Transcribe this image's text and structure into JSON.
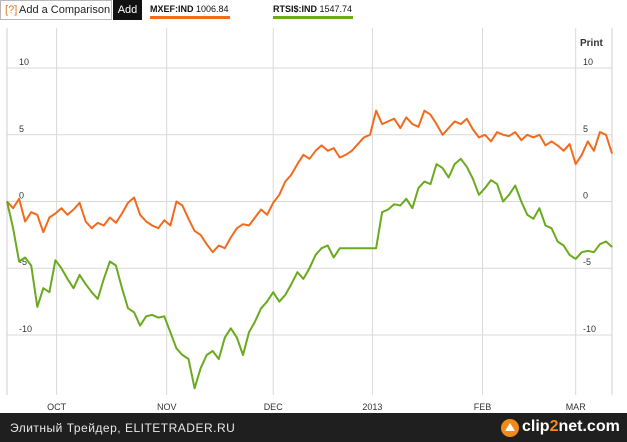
{
  "toolbar": {
    "help_glyph": "?",
    "compare_label": "Add a Comparison",
    "add_label": "Add",
    "print_label": "Print"
  },
  "legend": [
    {
      "ticker": "MXEF:IND",
      "value": "1006.84",
      "color": "#f26b1d"
    },
    {
      "ticker": "RTSI$:IND",
      "value": "1547.74",
      "color": "#6aaa1e"
    }
  ],
  "footer": {
    "caption": "Элитный Трейдер, ELITETRADER.RU",
    "logo_text_a": "clip",
    "logo_text_b": "2",
    "logo_text_c": "net.com"
  },
  "chart_data": {
    "type": "line",
    "ylim": [
      -14.5,
      13
    ],
    "y_ticks_left": [
      "10",
      "5",
      "0",
      "-5",
      "-10"
    ],
    "y_ticks_right": [
      "10",
      "5",
      "0",
      "-5",
      "-10"
    ],
    "x_labels": [
      "OCT",
      "NOV",
      "DEC",
      "2013",
      "FEB",
      "MAR"
    ],
    "x_range": [
      0,
      100
    ],
    "x_label_positions": [
      8.2,
      26.4,
      44.0,
      60.4,
      78.6,
      94.0
    ],
    "grid": true,
    "colors": {
      "MXEF:IND": "#f26b1d",
      "RTSI$:IND": "#6aaa1e",
      "grid": "#d9d9d9"
    },
    "series": [
      {
        "name": "MXEF:IND",
        "x": [
          0,
          1,
          2,
          3,
          4,
          5,
          6,
          7,
          8,
          9,
          10,
          11,
          12,
          13,
          14,
          15,
          16,
          17,
          18,
          19,
          20,
          21,
          22,
          23,
          24,
          25,
          26,
          27,
          28,
          29,
          30,
          31,
          32,
          33,
          34,
          35,
          36,
          37,
          38,
          39,
          40,
          41,
          42,
          43,
          44,
          45,
          46,
          47,
          48,
          49,
          50,
          51,
          52,
          53,
          54,
          55,
          56,
          57,
          58,
          59,
          60,
          61,
          62,
          63,
          64,
          65,
          66,
          67,
          68,
          69,
          70,
          71,
          72,
          73,
          74,
          75,
          76,
          77,
          78,
          79,
          80,
          81,
          82,
          83,
          84,
          85,
          86,
          87,
          88,
          89,
          90,
          91,
          92,
          93,
          94,
          95,
          96,
          97,
          98,
          99,
          100
        ],
        "values": [
          0.0,
          -0.5,
          0.2,
          -1.5,
          -0.8,
          -1.0,
          -2.3,
          -1.2,
          -0.9,
          -0.5,
          -1.0,
          -0.6,
          -0.1,
          -1.5,
          -2.0,
          -1.6,
          -1.8,
          -1.2,
          -1.6,
          -0.9,
          -0.1,
          0.3,
          -1.0,
          -1.5,
          -1.8,
          -2.0,
          -1.4,
          -1.8,
          0.0,
          -0.3,
          -1.3,
          -2.2,
          -2.5,
          -3.2,
          -3.8,
          -3.3,
          -3.5,
          -2.7,
          -2.0,
          -1.7,
          -1.8,
          -1.2,
          -0.6,
          -1.0,
          -0.1,
          0.5,
          1.5,
          2.0,
          2.8,
          3.5,
          3.2,
          3.8,
          4.2,
          3.8,
          4.0,
          3.3,
          3.5,
          3.8,
          4.3,
          4.8,
          5.0,
          6.8,
          5.8,
          6.0,
          6.2,
          5.5,
          6.3,
          5.8,
          5.6,
          6.8,
          6.5,
          5.8,
          5.0,
          5.5,
          6.0,
          5.8,
          6.2,
          5.4,
          4.8,
          5.0,
          4.5,
          5.2,
          5.0,
          4.9,
          5.2,
          4.6,
          5.0,
          4.8,
          5.0,
          4.2,
          4.5,
          4.2,
          3.8,
          4.3,
          2.8,
          3.5,
          4.5,
          3.8,
          5.2,
          5.0,
          3.6
        ]
      },
      {
        "name": "RTSI$:IND",
        "x": [
          0,
          1,
          2,
          3,
          4,
          5,
          6,
          7,
          8,
          9,
          10,
          11,
          12,
          13,
          14,
          15,
          16,
          17,
          18,
          19,
          20,
          21,
          22,
          23,
          24,
          25,
          26,
          27,
          28,
          29,
          30,
          31,
          32,
          33,
          34,
          35,
          36,
          37,
          38,
          39,
          40,
          41,
          42,
          43,
          44,
          45,
          46,
          47,
          48,
          49,
          50,
          51,
          52,
          53,
          54,
          55,
          56,
          57,
          58,
          59,
          60,
          61,
          62,
          63,
          64,
          65,
          66,
          67,
          68,
          69,
          70,
          71,
          72,
          73,
          74,
          75,
          76,
          77,
          78,
          79,
          80,
          81,
          82,
          83,
          84,
          85,
          86,
          87,
          88,
          89,
          90,
          91,
          92,
          93,
          94,
          95,
          96,
          97,
          98,
          99,
          100
        ],
        "values": [
          0.0,
          -2.0,
          -4.5,
          -4.2,
          -4.8,
          -7.9,
          -6.5,
          -6.8,
          -4.4,
          -5.0,
          -5.8,
          -6.5,
          -5.5,
          -6.2,
          -6.8,
          -7.3,
          -5.8,
          -4.5,
          -4.8,
          -6.5,
          -8.0,
          -8.3,
          -9.3,
          -8.6,
          -8.5,
          -8.7,
          -8.6,
          -9.8,
          -11.0,
          -11.5,
          -11.8,
          -14.0,
          -12.5,
          -11.5,
          -11.2,
          -11.8,
          -10.2,
          -9.5,
          -10.2,
          -11.5,
          -9.8,
          -9.0,
          -8.0,
          -7.5,
          -6.8,
          -7.5,
          -7.0,
          -6.2,
          -5.3,
          -5.8,
          -5.0,
          -4.0,
          -3.5,
          -3.3,
          -4.2,
          -3.5,
          -3.5,
          -3.5,
          -3.5,
          -3.5,
          -3.5,
          -3.5,
          -0.8,
          -0.6,
          -0.2,
          -0.3,
          0.2,
          -0.5,
          1.0,
          1.5,
          1.3,
          2.8,
          2.5,
          1.8,
          2.8,
          3.2,
          2.6,
          1.7,
          0.5,
          1.0,
          1.6,
          1.3,
          0.0,
          0.5,
          1.2,
          0.0,
          -1.0,
          -1.3,
          -0.5,
          -1.8,
          -2.0,
          -3.0,
          -3.3,
          -4.0,
          -4.3,
          -3.8,
          -3.7,
          -3.8,
          -3.2,
          -3.0,
          -3.4
        ]
      }
    ]
  }
}
